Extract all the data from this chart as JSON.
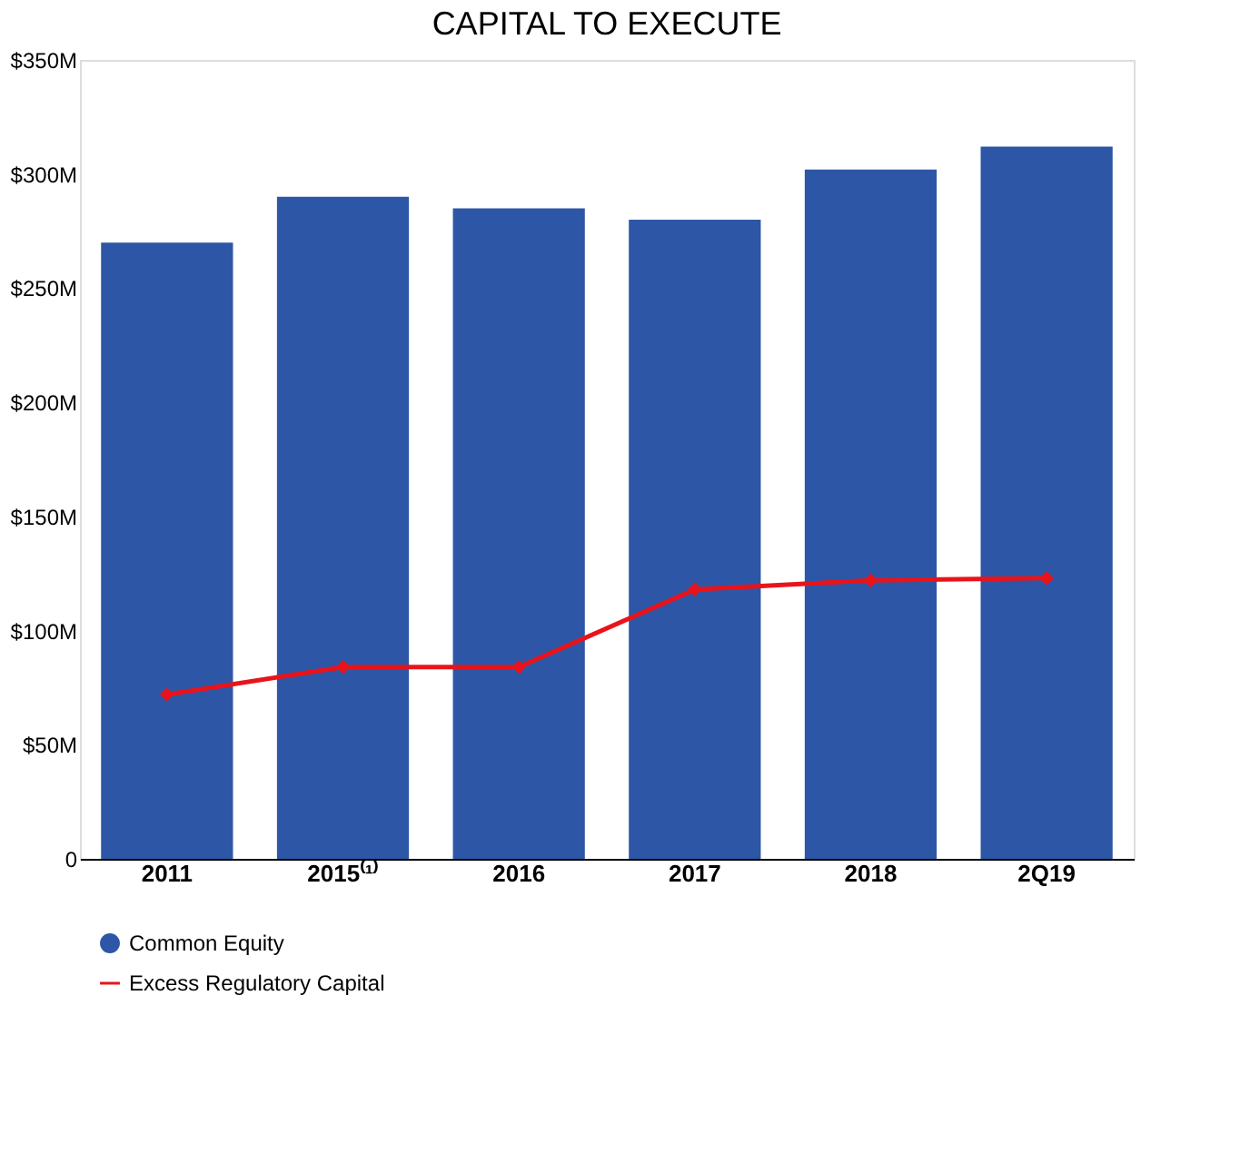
{
  "chart_data": {
    "type": "bar",
    "title": "CAPITAL TO EXECUTE",
    "categories": [
      "2011",
      "2015⁽¹⁾",
      "2016",
      "2017",
      "2018",
      "2Q19"
    ],
    "series": [
      {
        "name": "Common Equity",
        "color": "#2e56a6",
        "values": [
          270,
          290,
          285,
          280,
          302,
          312
        ]
      },
      {
        "name": "Excess Regulatory Capital",
        "type": "line",
        "color": "#e8141b",
        "marker": "diamond",
        "values": [
          72,
          84,
          84,
          118,
          122,
          123
        ]
      }
    ],
    "ylim": [
      0,
      350
    ],
    "yticks": [
      {
        "value": 0,
        "label": "0"
      },
      {
        "value": 50,
        "label": "$50M"
      },
      {
        "value": 100,
        "label": "$100M"
      },
      {
        "value": 150,
        "label": "$150M"
      },
      {
        "value": 200,
        "label": "$200M"
      },
      {
        "value": 250,
        "label": "$250M"
      },
      {
        "value": 300,
        "label": "$300M"
      },
      {
        "value": 350,
        "label": "$350M"
      }
    ],
    "grid": false,
    "legend": "bottom left"
  }
}
